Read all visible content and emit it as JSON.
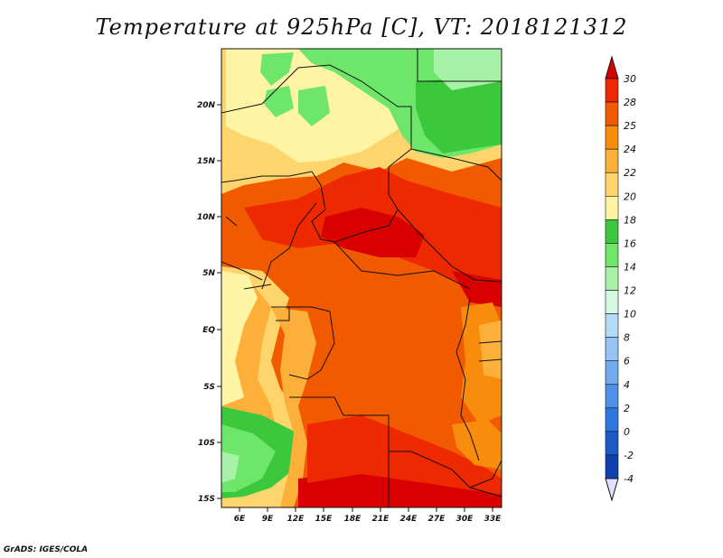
{
  "title": "Temperature at 925hPa [C], VT: 2018121312",
  "credit": "GrADS: IGES/COLA",
  "map": {
    "lat_labels": [
      "20N",
      "15N",
      "10N",
      "5N",
      "EQ",
      "5S",
      "10S",
      "15S"
    ],
    "lon_labels": [
      "6E",
      "9E",
      "12E",
      "15E",
      "18E",
      "21E",
      "24E",
      "27E",
      "30E",
      "33E"
    ]
  },
  "colorbar": {
    "labels": [
      "30",
      "28",
      "25",
      "24",
      "22",
      "20",
      "18",
      "16",
      "14",
      "12",
      "10",
      "8",
      "6",
      "4",
      "2",
      "0",
      "-2",
      "-4"
    ],
    "colors": {
      "above": "#d80000",
      "c28_30": "#ee2800",
      "c25_28": "#f25a00",
      "c24_25": "#f88c0c",
      "c22_24": "#fcb03a",
      "c20_22": "#fed46c",
      "c18_20": "#fef4a4",
      "c16_18": "#3cc83c",
      "c14_16": "#6ee66a",
      "c12_14": "#a8f2a8",
      "c10_12": "#d4f8e4",
      "c8_10": "#b4dcf8",
      "c6_8": "#94c4f4",
      "c4_6": "#72aaee",
      "c2_4": "#5090e8",
      "c0_2": "#2c78e0",
      "cm2_0": "#1c5ac8",
      "cm4_m2": "#1040b0",
      "below_lower": "#0c1c78",
      "below": "#e0e0ff"
    }
  }
}
